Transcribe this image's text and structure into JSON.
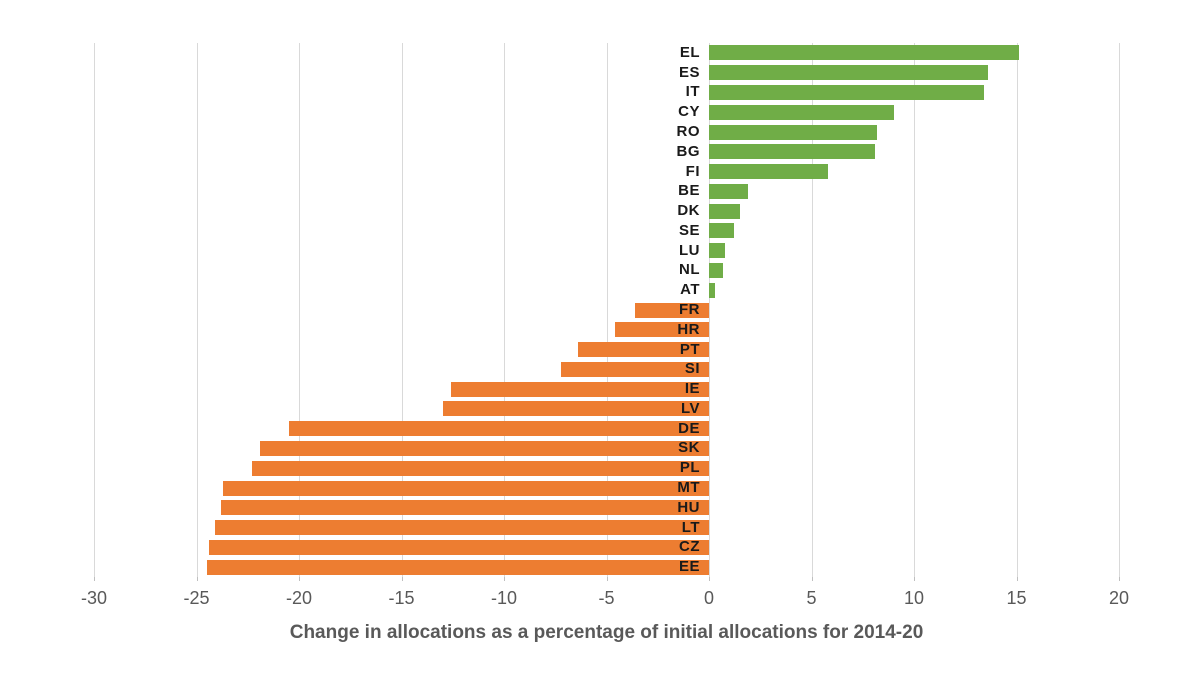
{
  "chart_data": {
    "type": "bar",
    "orientation": "horizontal",
    "xlabel": "Change in allocations as a percentage of initial allocations for 2014-20",
    "categories": [
      "EL",
      "ES",
      "IT",
      "CY",
      "RO",
      "BG",
      "FI",
      "BE",
      "DK",
      "SE",
      "LU",
      "NL",
      "AT",
      "FR",
      "HR",
      "PT",
      "SI",
      "IE",
      "LV",
      "DE",
      "SK",
      "PL",
      "MT",
      "HU",
      "LT",
      "CZ",
      "EE"
    ],
    "values": [
      15.1,
      13.6,
      13.4,
      9.0,
      8.2,
      8.1,
      5.8,
      1.9,
      1.5,
      1.2,
      0.8,
      0.7,
      0.3,
      -3.6,
      -4.6,
      -6.4,
      -7.2,
      -12.6,
      -13.0,
      -20.5,
      -21.9,
      -22.3,
      -23.7,
      -23.8,
      -24.1,
      -24.4,
      -24.5
    ],
    "xlim": [
      -30,
      20
    ],
    "x_ticks": [
      -30,
      -25,
      -20,
      -15,
      -10,
      -5,
      0,
      5,
      10,
      15,
      20
    ],
    "grid": "vertical-only",
    "legend": "none",
    "colors": {
      "positive": "#70AD47",
      "negative": "#ED7D31",
      "gridline": "#D9D9D9",
      "tick_label": "#595959",
      "category_label": "#1A1A1A",
      "axis_title": "#595959"
    }
  }
}
